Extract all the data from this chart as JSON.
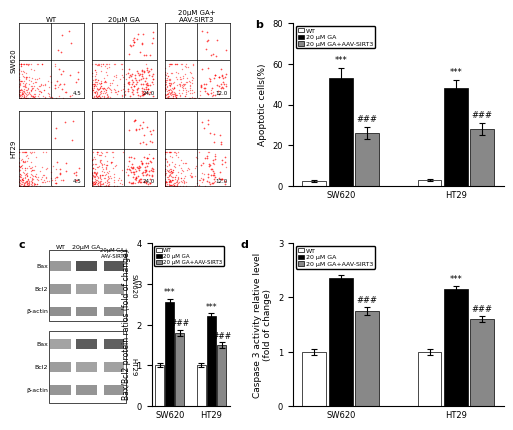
{
  "panel_b": {
    "groups": [
      "SW620",
      "HT29"
    ],
    "conditions": [
      "WT",
      "20 μM GA",
      "20 μM GA+AAV-SIRT3"
    ],
    "values": {
      "SW620": [
        2.5,
        53.0,
        26.0
      ],
      "HT29": [
        3.0,
        48.0,
        28.0
      ]
    },
    "errors": {
      "SW620": [
        0.5,
        5.0,
        3.0
      ],
      "HT29": [
        0.5,
        4.0,
        3.0
      ]
    },
    "ylabel": "Apoptotic cells(%)",
    "ylim": [
      0,
      80
    ],
    "yticks": [
      0,
      20,
      40,
      60,
      80
    ],
    "colors": [
      "white",
      "black",
      "#888888"
    ],
    "bar_edge": "black"
  },
  "panel_c_bar": {
    "groups": [
      "SW620",
      "HT29"
    ],
    "conditions": [
      "WT",
      "20 μM GA",
      "20 μM GA+AAV-SIRT3"
    ],
    "values": {
      "SW620": [
        1.0,
        2.55,
        1.8
      ],
      "HT29": [
        1.0,
        2.2,
        1.5
      ]
    },
    "errors": {
      "SW620": [
        0.05,
        0.08,
        0.08
      ],
      "HT29": [
        0.05,
        0.08,
        0.07
      ]
    },
    "ylabel": "Bax/Bcl2 protein ratios (fold of change)",
    "ylim": [
      0,
      4
    ],
    "yticks": [
      0,
      1,
      2,
      3,
      4
    ],
    "colors": [
      "white",
      "black",
      "#888888"
    ],
    "bar_edge": "black"
  },
  "panel_d": {
    "groups": [
      "SW620",
      "HT29"
    ],
    "conditions": [
      "WT",
      "20 μM GA",
      "20 μM GA+AAV-SIRT3"
    ],
    "values": {
      "SW620": [
        1.0,
        2.35,
        1.75
      ],
      "HT29": [
        1.0,
        2.15,
        1.6
      ]
    },
    "errors": {
      "SW620": [
        0.06,
        0.07,
        0.07
      ],
      "HT29": [
        0.06,
        0.06,
        0.06
      ]
    },
    "ylabel": "Caspase 3 activity relative level\n(fold of change)",
    "ylim": [
      0,
      3
    ],
    "yticks": [
      0,
      1,
      2,
      3
    ],
    "colors": [
      "white",
      "black",
      "#888888"
    ],
    "bar_edge": "black"
  },
  "legend_labels": [
    "WT",
    "20 μM GA",
    "20 μM GA+AAV-SIRT3"
  ],
  "legend_colors": [
    "white",
    "black",
    "#888888"
  ],
  "flow_cytometry_label_rows": [
    "SW620",
    "HT29"
  ],
  "flow_cytometry_label_cols": [
    "WT",
    "20μM GA",
    "20μM GA+\nAAV-SIRT3"
  ],
  "western_blot_rows_sw620": [
    "Bax",
    "Bcl2",
    "β-actin"
  ],
  "western_blot_rows_ht29": [
    "Bax",
    "Bcl2",
    "β-actin"
  ],
  "font_size_label": 7,
  "font_size_tick": 6,
  "font_size_sig": 6,
  "background_color": "white"
}
